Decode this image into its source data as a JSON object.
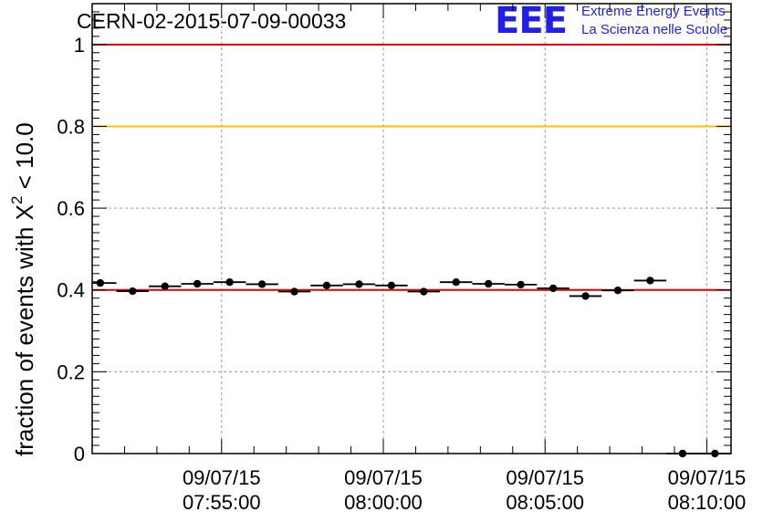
{
  "header": {
    "title": "CERN-02-2015-07-09-00033",
    "logo_text": "EEE",
    "brand_line1": "Extreme Energy Events",
    "brand_line2": "La Scienza nelle Scuole"
  },
  "colors": {
    "brand": "#1f1fe6",
    "ref_red": "#e00000",
    "ref_orange": "#ffc000",
    "grid": "#9a9a9a",
    "marker": "#000000"
  },
  "chart_data": {
    "type": "scatter",
    "title": "CERN-02-2015-07-09-00033",
    "ylabel_main": "fraction of events with X",
    "ylabel_sup": "2",
    "ylabel_tail": " < 10.0",
    "xlabel": "",
    "ylim": [
      0,
      1.1
    ],
    "xlim": [
      "07:51:00",
      "08:10:45"
    ],
    "grid": true,
    "x_ticks": [
      {
        "date": "09/07/15",
        "time": "07:55:00"
      },
      {
        "date": "09/07/15",
        "time": "08:00:00"
      },
      {
        "date": "09/07/15",
        "time": "08:05:00"
      },
      {
        "date": "09/07/15",
        "time": "08:10:00"
      }
    ],
    "y_ticks": [
      "0",
      "0.2",
      "0.4",
      "0.6",
      "0.8",
      "1"
    ],
    "reference_lines": [
      {
        "y": 1.0,
        "color": "#e00000"
      },
      {
        "y": 0.8,
        "color": "#ffc000"
      },
      {
        "y": 0.4,
        "color": "#e00000"
      }
    ],
    "series": [
      {
        "x": [
          "07:51:15",
          "07:52:15",
          "07:53:15",
          "07:54:15",
          "07:55:15",
          "07:56:15",
          "07:57:15",
          "07:58:15",
          "07:59:15",
          "08:00:15",
          "08:01:15",
          "08:02:15",
          "08:03:15",
          "08:04:15",
          "08:05:15",
          "08:06:15",
          "08:07:15",
          "08:08:15",
          "08:09:15",
          "08:10:15"
        ],
        "values": [
          0.417,
          0.397,
          0.409,
          0.415,
          0.419,
          0.414,
          0.396,
          0.411,
          0.414,
          0.411,
          0.396,
          0.419,
          0.415,
          0.413,
          0.404,
          0.385,
          0.399,
          0.423,
          0.0,
          0.0
        ],
        "bin_width_minutes": 1
      }
    ]
  }
}
